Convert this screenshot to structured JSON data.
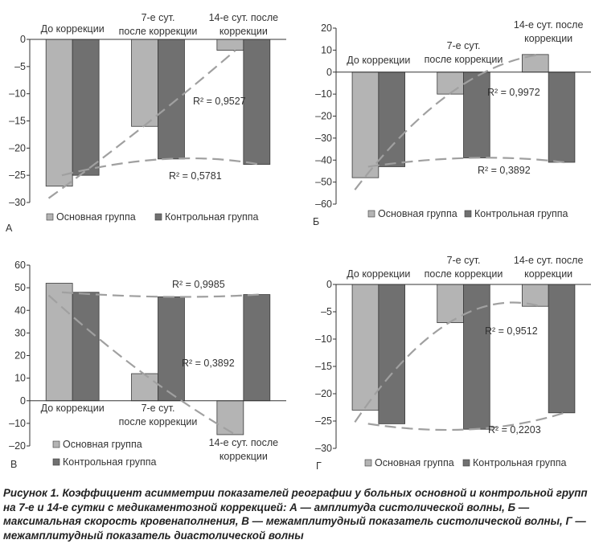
{
  "colors": {
    "main": "#b4b4b4",
    "control": "#707070",
    "trend": "#a0a0a0",
    "axis": "#333333",
    "text": "#222222"
  },
  "caption": "Рисунок 1. Коэффициент асимметрии показателей реографии у больных основной и контрольной групп на 7-е и 14-е сутки с медикаментозной коррекцией: А — амплитуда систолической волны, Б — максимальная скорость кровенаполнения, В — межамплитудный показатель систолической волны, Г — межамплитудный показатель диастолической волны",
  "legend": {
    "main": "Основная группа",
    "control": "Контрольная группа"
  },
  "chart_data": [
    {
      "panel": "А",
      "type": "bar",
      "categories": [
        [
          "До коррекции"
        ],
        [
          "7-е сут.",
          "после коррекции"
        ],
        [
          "14-е сут. после",
          "коррекции"
        ]
      ],
      "series": [
        {
          "name": "Основная группа",
          "values": [
            -27,
            -16,
            -2
          ]
        },
        {
          "name": "Контрольная группа",
          "values": [
            -25,
            -22,
            -23
          ]
        }
      ],
      "ylim": [
        -30,
        0
      ],
      "yticks": [
        "0",
        "–5",
        "–10",
        "–15",
        "–20",
        "–25",
        "–30"
      ],
      "trendlines": [
        {
          "series": "Основная группа",
          "r2": "R² = 0,9527"
        },
        {
          "series": "Контрольная группа",
          "r2": "R² = 0,5781"
        }
      ],
      "legend_position": "bottom",
      "grid": false
    },
    {
      "panel": "Б",
      "type": "bar",
      "categories": [
        [
          "До коррекции"
        ],
        [
          "7-е сут.",
          "после коррекции"
        ],
        [
          "14-е сут. после",
          "коррекции"
        ]
      ],
      "series": [
        {
          "name": "Основная группа",
          "values": [
            -48,
            -10,
            8
          ]
        },
        {
          "name": "Контрольная группа",
          "values": [
            -43,
            -39,
            -41
          ]
        }
      ],
      "ylim": [
        -60,
        20
      ],
      "yticks": [
        "20",
        "10",
        "0",
        "–10",
        "–20",
        "–30",
        "–40",
        "–50",
        "–60"
      ],
      "trendlines": [
        {
          "series": "Основная группа",
          "r2": "R² = 0,9972"
        },
        {
          "series": "Контрольная группа",
          "r2": "R² = 0,3892"
        }
      ],
      "legend_position": "bottom",
      "grid": false
    },
    {
      "panel": "В",
      "type": "bar",
      "categories": [
        [
          "До коррекции"
        ],
        [
          "7-е сут.",
          "после коррекции"
        ],
        [
          "14-е сут. после",
          "коррекции"
        ]
      ],
      "series": [
        {
          "name": "Основная группа",
          "values": [
            52,
            12,
            -15
          ]
        },
        {
          "name": "Контрольная группа",
          "values": [
            48,
            46,
            47
          ]
        }
      ],
      "ylim": [
        -20,
        60
      ],
      "yticks": [
        "60",
        "50",
        "40",
        "30",
        "20",
        "10",
        "0",
        "–10",
        "–20"
      ],
      "trendlines": [
        {
          "series": "Основная группа",
          "r2": "R² = 0,9985"
        },
        {
          "series": "Контрольная группа",
          "r2": "R² = 0,3892"
        }
      ],
      "legend_position": "bottom",
      "grid": false
    },
    {
      "panel": "Г",
      "type": "bar",
      "categories": [
        [
          "До коррекции"
        ],
        [
          "7-е сут.",
          "после коррекции"
        ],
        [
          "14-е сут. после",
          "коррекции"
        ]
      ],
      "series": [
        {
          "name": "Основная группа",
          "values": [
            -23,
            -7,
            -4
          ]
        },
        {
          "name": "Контрольная группа",
          "values": [
            -25.5,
            -26.5,
            -23.5
          ]
        }
      ],
      "ylim": [
        -30,
        0
      ],
      "yticks": [
        "0",
        "–5",
        "–10",
        "–15",
        "–20",
        "–25",
        "–30"
      ],
      "trendlines": [
        {
          "series": "Основная группа",
          "r2": "R² = 0,9512"
        },
        {
          "series": "Контрольная группа",
          "r2": "R² = 0,2203"
        }
      ],
      "legend_position": "bottom",
      "grid": false
    }
  ]
}
